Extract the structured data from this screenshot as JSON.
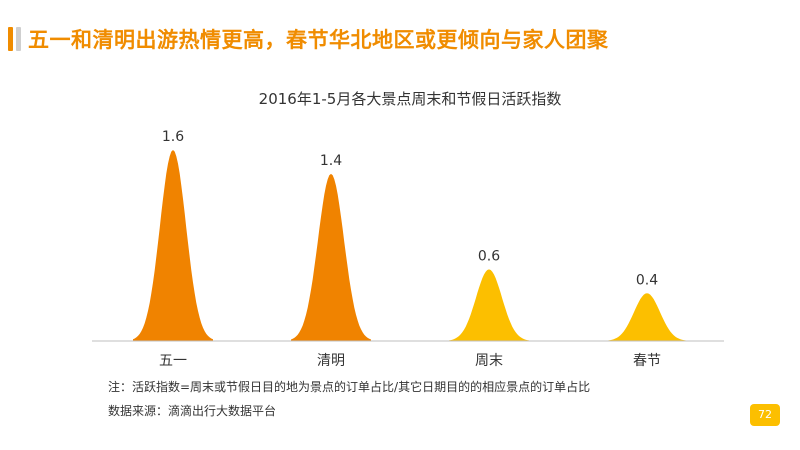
{
  "header": {
    "title": "五一和清明出游热情更高，春节华北地区或更倾向与家人团聚"
  },
  "chart_data": {
    "type": "area",
    "title": "2016年1-5月各大景点周末和节假日活跃指数",
    "categories": [
      "五一",
      "清明",
      "周末",
      "春节"
    ],
    "values": [
      1.6,
      1.4,
      0.6,
      0.4
    ],
    "value_labels": [
      "1.6",
      "1.4",
      "0.6",
      "0.4"
    ],
    "colors": [
      "#f08300",
      "#f08300",
      "#fcbf00",
      "#fcbf00"
    ],
    "ylim": [
      0,
      1.6
    ],
    "grid": false,
    "legend": "none"
  },
  "footer": {
    "note": "注：活跃指数=周末或节假日目的地为景点的订单占比/其它日期目的的相应景点的订单占比",
    "source": "数据来源：滴滴出行大数据平台",
    "page_number": "72"
  },
  "colors": {
    "accent": "#f08c00",
    "badge": "#fcbf00",
    "axis": "#bfbfbf",
    "text": "#333333"
  }
}
